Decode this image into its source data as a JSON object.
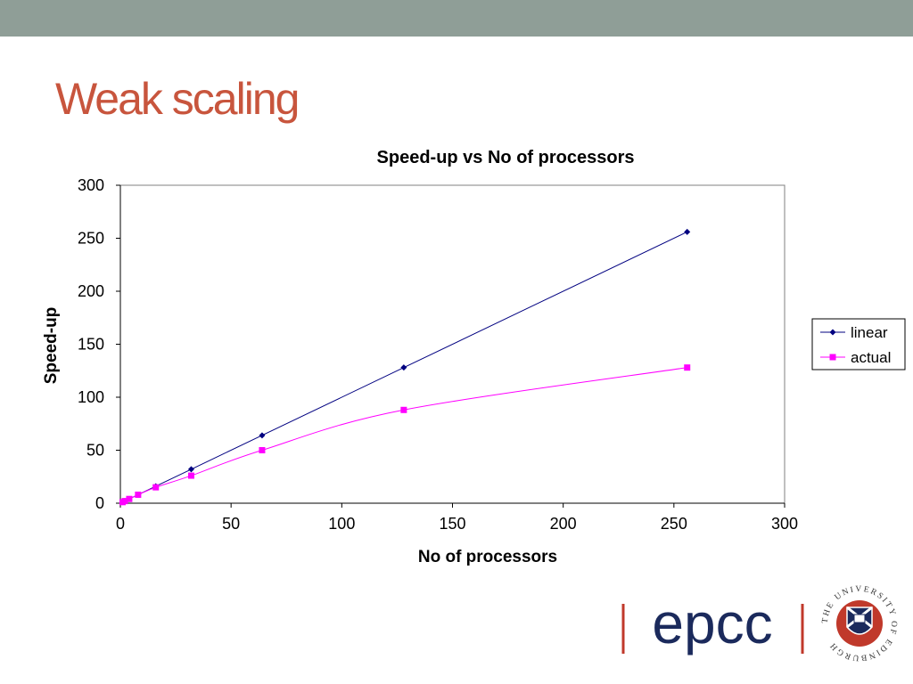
{
  "slide": {
    "title": "Weak scaling"
  },
  "chart_data": {
    "type": "line",
    "title": "Speed-up vs No of processors",
    "xlabel": "No of processors",
    "ylabel": "Speed-up",
    "xlim": [
      0,
      300
    ],
    "ylim": [
      0,
      300
    ],
    "xticks": [
      0,
      50,
      100,
      150,
      200,
      250,
      300
    ],
    "yticks": [
      0,
      50,
      100,
      150,
      200,
      250,
      300
    ],
    "grid": false,
    "legend_position": "right",
    "series": [
      {
        "name": "linear",
        "color": "#000080",
        "marker": "diamond",
        "x": [
          1,
          2,
          4,
          8,
          16,
          32,
          64,
          128,
          256
        ],
        "y": [
          1,
          2,
          4,
          8,
          16,
          32,
          64,
          128,
          256
        ]
      },
      {
        "name": "actual",
        "color": "#ff00ff",
        "marker": "square",
        "x": [
          1,
          2,
          4,
          8,
          16,
          32,
          64,
          128,
          256
        ],
        "y": [
          1,
          2,
          4,
          8,
          15,
          26,
          50,
          88,
          128
        ]
      }
    ]
  },
  "logos": {
    "epcc_text": "epcc",
    "university_seal_text": "THE UNIVERSITY OF EDINBURGH"
  }
}
